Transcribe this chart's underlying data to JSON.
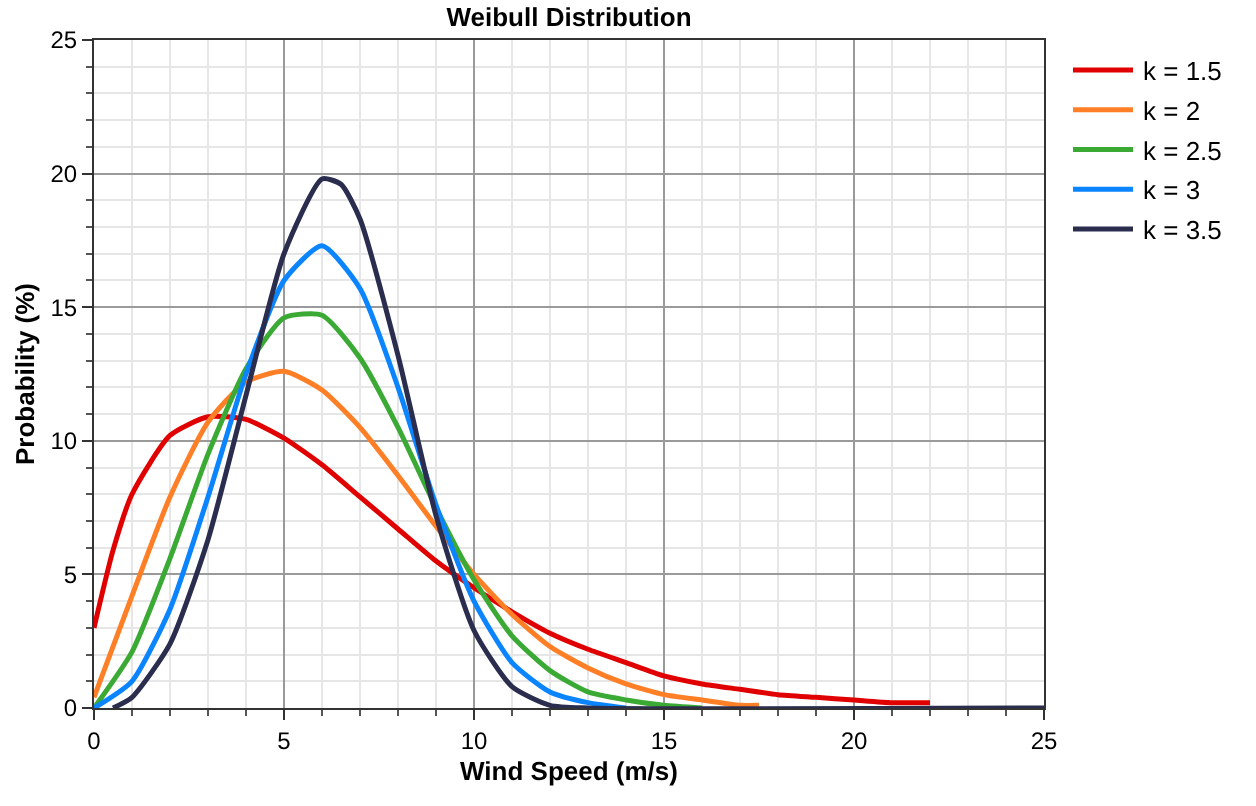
{
  "chart_data": {
    "type": "line",
    "title": "Weibull Distribution",
    "xlabel": "Wind Speed (m/s)",
    "ylabel": "Probability (%)",
    "xlim": [
      0,
      25
    ],
    "xticks": [
      0,
      5,
      10,
      15,
      20,
      25
    ],
    "ylim": [
      0,
      25
    ],
    "yticks": [
      0,
      5,
      10,
      15,
      20,
      25
    ],
    "grid": true,
    "legend": "top right",
    "marker": "none",
    "line_style": "solid",
    "series": [
      {
        "name": "k = 1.5",
        "color": "#e00000",
        "x": [
          0,
          0.5,
          1,
          2,
          3,
          4,
          5,
          6,
          7,
          8,
          9,
          10,
          11,
          12,
          13,
          14,
          15,
          16,
          17,
          18,
          19,
          20,
          21,
          22
        ],
        "values": [
          3,
          5.9,
          8,
          10.2,
          10.9,
          10.8,
          10.1,
          9.1,
          7.9,
          6.7,
          5.5,
          4.5,
          3.6,
          2.8,
          2.2,
          1.7,
          1.2,
          0.9,
          0.7,
          0.5,
          0.4,
          0.3,
          0.2,
          0.2
        ]
      },
      {
        "name": "k = 2",
        "color": "#ff7f27",
        "x": [
          0,
          1,
          2,
          3,
          4,
          5,
          6,
          7,
          8,
          9,
          10,
          11,
          12,
          13,
          14,
          15,
          16,
          17,
          17.5
        ],
        "values": [
          0.4,
          4.2,
          7.9,
          10.7,
          12.2,
          12.6,
          11.9,
          10.5,
          8.7,
          6.8,
          5,
          3.5,
          2.3,
          1.5,
          0.9,
          0.5,
          0.3,
          0.1,
          0.1
        ]
      },
      {
        "name": "k = 2.5",
        "color": "#3aaa35",
        "x": [
          0,
          1,
          2,
          3,
          4,
          5,
          6,
          7,
          8,
          9,
          10,
          11,
          12,
          13,
          14,
          15,
          16
        ],
        "values": [
          0,
          2.1,
          5.6,
          9.5,
          12.7,
          14.6,
          14.7,
          13.1,
          10.5,
          7.5,
          4.8,
          2.7,
          1.4,
          0.6,
          0.3,
          0.1,
          0
        ]
      },
      {
        "name": "k = 3",
        "color": "#0a84ff",
        "x": [
          0,
          1,
          2,
          3,
          4,
          5,
          6,
          7,
          8,
          9,
          10,
          11,
          12,
          13,
          14
        ],
        "values": [
          0,
          1,
          3.7,
          7.9,
          12.5,
          16,
          17.3,
          15.7,
          12,
          7.6,
          4,
          1.7,
          0.6,
          0.2,
          0
        ]
      },
      {
        "name": "k = 3.5",
        "color": "#2b2d4f",
        "x": [
          0.5,
          1,
          2,
          3,
          4,
          5,
          6,
          6.5,
          7,
          8,
          9,
          10,
          11,
          12,
          13,
          25
        ],
        "values": [
          0,
          0.4,
          2.4,
          6.3,
          11.7,
          17,
          19.8,
          19.6,
          18.3,
          13.2,
          7.2,
          2.9,
          0.8,
          0.1,
          0,
          0
        ]
      }
    ]
  }
}
